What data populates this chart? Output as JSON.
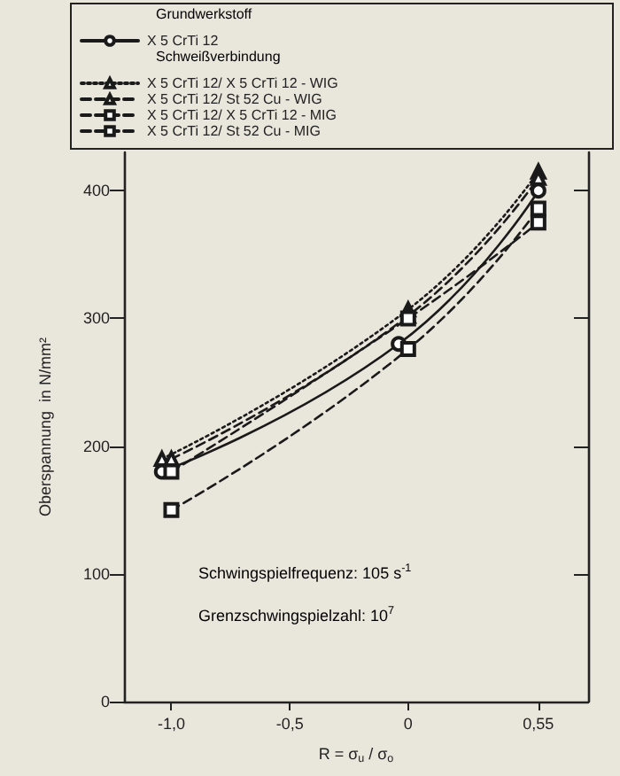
{
  "chart_data": {
    "type": "line",
    "xlabel": "R = σ$_{u}$ / σ$_{o}$",
    "ylabel": "Oberspannung  in N/mm²",
    "x": [
      -1.0,
      0,
      0.55
    ],
    "xlim": [
      -1.2,
      0.76
    ],
    "xticks": [
      {
        "value": -1.0,
        "label": "-1,0"
      },
      {
        "value": -0.5,
        "label": "-0,5"
      },
      {
        "value": 0,
        "label": "0"
      },
      {
        "value": 0.55,
        "label": "0,55"
      }
    ],
    "ylim": [
      0,
      430
    ],
    "yticks": [
      0,
      100,
      200,
      300,
      400
    ],
    "grid": false,
    "legend": "top",
    "series": [
      {
        "name": "X 5 CrTi 12",
        "color": "#1a1a1a",
        "x": [
          -1.04,
          -0.04,
          0.55
        ],
        "values": [
          180,
          280,
          400
        ],
        "marker": "circle",
        "line_style": "solid"
      },
      {
        "name": "X 5 CrTi 12/ X 5 CrTi 12 - WIG",
        "color": "#1a1a1a",
        "x": [
          -1.04,
          0,
          0.55
        ],
        "values": [
          190,
          307,
          415
        ],
        "marker": "triangle",
        "line_style": "dotted"
      },
      {
        "name": "X 5 CrTi 12/ St 52 Cu - WIG",
        "color": "#1a1a1a",
        "values": [
          190,
          302,
          410
        ],
        "marker": "triangle",
        "line_style": "dashed"
      },
      {
        "name": "X 5 CrTi 12/ X 5 CrTi 12 - MIG",
        "color": "#1a1a1a",
        "values": [
          150,
          276,
          386
        ],
        "marker": "square",
        "line_style": "dashed"
      },
      {
        "name": "X 5 CrTi 12/ St 52 Cu - MIG",
        "color": "#1a1a1a",
        "values": [
          180,
          300,
          375
        ],
        "marker": "square",
        "line_style": "dashed"
      }
    ],
    "annotations": [
      "Grundwerkstoff",
      "Schweißverbindung",
      "Schwingspielfrequenz: 105 s$^{-1}$",
      "Grenzschwingspielzahl: 10$^{7}$"
    ]
  }
}
